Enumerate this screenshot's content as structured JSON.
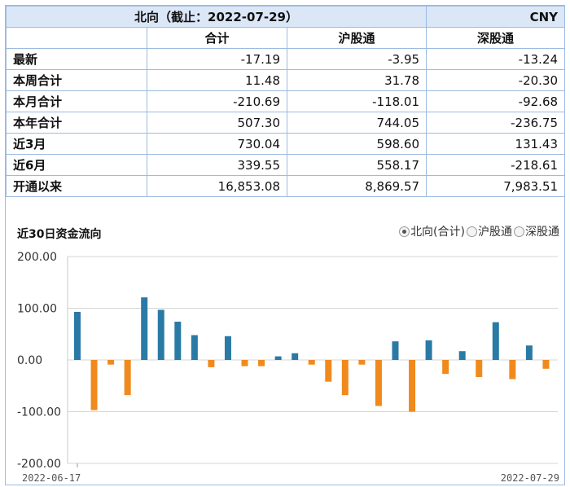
{
  "table": {
    "title": "北向（截止：2022-07-29）",
    "currency": "CNY",
    "columns": [
      "合计",
      "沪股通",
      "深股通"
    ],
    "rows": [
      {
        "label": "最新",
        "values": [
          "-17.19",
          "-3.95",
          "-13.24"
        ]
      },
      {
        "label": "本周合计",
        "values": [
          "11.48",
          "31.78",
          "-20.30"
        ]
      },
      {
        "label": "本月合计",
        "values": [
          "-210.69",
          "-118.01",
          "-92.68"
        ]
      },
      {
        "label": "本年合计",
        "values": [
          "507.30",
          "744.05",
          "-236.75"
        ]
      },
      {
        "label": "近3月",
        "values": [
          "730.04",
          "598.60",
          "131.43"
        ]
      },
      {
        "label": "近6月",
        "values": [
          "339.55",
          "558.17",
          "-218.61"
        ]
      },
      {
        "label": "开通以来",
        "values": [
          "16,853.08",
          "8,869.57",
          "7,983.51"
        ]
      }
    ]
  },
  "chart_header": {
    "title": "近30日资金流向",
    "options": [
      {
        "label": "北向(合计)",
        "selected": true
      },
      {
        "label": "沪股通",
        "selected": false
      },
      {
        "label": "深股通",
        "selected": false
      }
    ]
  },
  "chart_data": {
    "type": "bar",
    "title": "近30日资金流向",
    "x_start_label": "2022-06-17",
    "x_end_label": "2022-07-29",
    "ylim": [
      -200,
      200
    ],
    "yticks": [
      "200.00",
      "100.00",
      "0.00",
      "-100.00",
      "-200.00"
    ],
    "grid": true,
    "colors": {
      "positive": "#2a7aa6",
      "negative": "#f08a1c"
    },
    "values": [
      93,
      -97,
      -9,
      -68,
      121,
      97,
      74,
      48,
      -14,
      46,
      -12,
      -12,
      7,
      13,
      -9,
      -42,
      -68,
      -9,
      -89,
      36,
      -100,
      38,
      -27,
      17,
      -33,
      73,
      -37,
      28,
      -17
    ]
  }
}
